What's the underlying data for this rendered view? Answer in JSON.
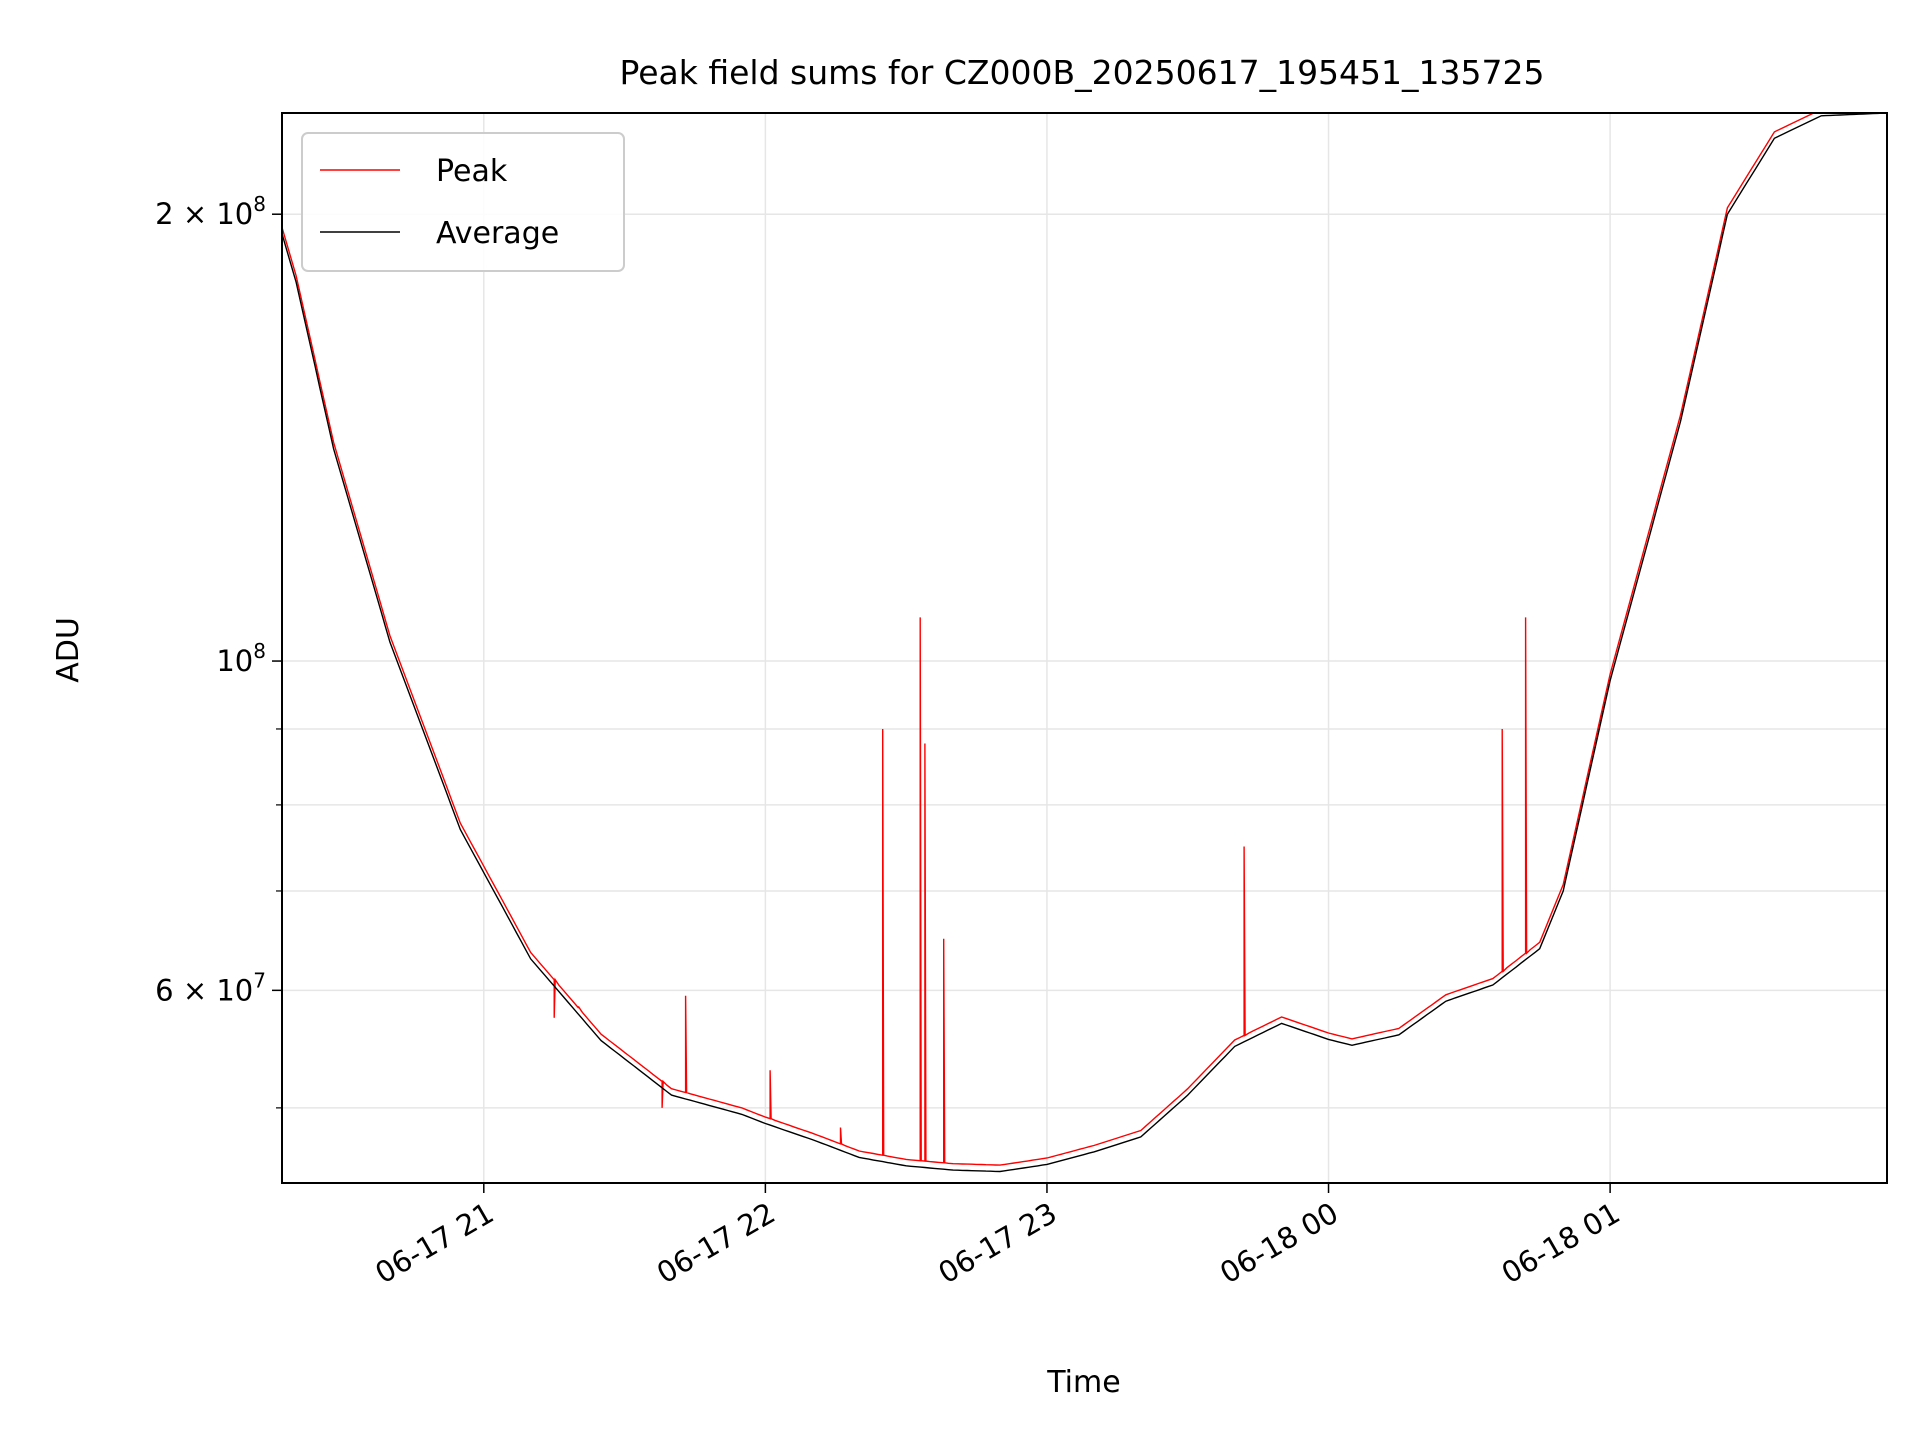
{
  "chart_data": {
    "type": "line",
    "title": "Peak field sums for CZ000B_20250617_195451_135725",
    "xlabel": "Time",
    "ylabel": "ADU",
    "yscale": "log",
    "grid": true,
    "legend_position": "top-left",
    "xlim": [
      "2025-06-17 20:17",
      "2025-06-18 01:59"
    ],
    "ylim": [
      44500000,
      234000000
    ],
    "x_ticks": [
      "06-17 21",
      "06-17 22",
      "06-17 23",
      "06-18 00",
      "06-18 01"
    ],
    "x_tick_values": [
      "2025-06-17 21:00",
      "2025-06-17 22:00",
      "2025-06-17 23:00",
      "2025-06-18 00:00",
      "2025-06-18 01:00"
    ],
    "y_ticks": [
      {
        "value": 200000000,
        "mantissa": "2",
        "sep": "×",
        "base": "10",
        "exp": "8"
      },
      {
        "value": 100000000,
        "mantissa": "",
        "sep": "",
        "base": "10",
        "exp": "8"
      },
      {
        "value": 60000000,
        "mantissa": "6",
        "sep": "×",
        "base": "10",
        "exp": "7"
      }
    ],
    "y_minor_ticks": [
      50000000,
      70000000,
      80000000,
      90000000
    ],
    "series": [
      {
        "name": "Average",
        "color": "#000000",
        "points": [
          [
            "2025-06-17 20:17",
            194000000
          ],
          [
            "2025-06-17 20:20",
            180000000
          ],
          [
            "2025-06-17 20:28",
            139000000
          ],
          [
            "2025-06-17 20:40",
            103000000
          ],
          [
            "2025-06-17 20:55",
            77000000
          ],
          [
            "2025-06-17 21:10",
            63000000
          ],
          [
            "2025-06-17 21:25",
            55500000
          ],
          [
            "2025-06-17 21:40",
            51000000
          ],
          [
            "2025-06-17 21:55",
            49500000
          ],
          [
            "2025-06-17 22:00",
            48800000
          ],
          [
            "2025-06-17 22:10",
            47600000
          ],
          [
            "2025-06-17 22:20",
            46300000
          ],
          [
            "2025-06-17 22:30",
            45700000
          ],
          [
            "2025-06-17 22:40",
            45400000
          ],
          [
            "2025-06-17 22:50",
            45300000
          ],
          [
            "2025-06-17 23:00",
            45800000
          ],
          [
            "2025-06-17 23:10",
            46700000
          ],
          [
            "2025-06-17 23:20",
            47800000
          ],
          [
            "2025-06-17 23:30",
            51000000
          ],
          [
            "2025-06-17 23:40",
            55000000
          ],
          [
            "2025-06-17 23:50",
            57000000
          ],
          [
            "2025-06-18 00:00",
            55600000
          ],
          [
            "2025-06-18 00:05",
            55100000
          ],
          [
            "2025-06-18 00:15",
            56000000
          ],
          [
            "2025-06-18 00:25",
            59000000
          ],
          [
            "2025-06-18 00:35",
            60500000
          ],
          [
            "2025-06-18 00:45",
            64000000
          ],
          [
            "2025-06-18 00:50",
            70000000
          ],
          [
            "2025-06-18 01:00",
            97000000
          ],
          [
            "2025-06-18 01:15",
            145000000
          ],
          [
            "2025-06-18 01:25",
            200000000
          ],
          [
            "2025-06-18 01:35",
            225000000
          ],
          [
            "2025-06-18 01:45",
            233000000
          ],
          [
            "2025-06-18 01:59",
            234000000
          ]
        ]
      },
      {
        "name": "Peak",
        "color": "#ff0000",
        "spikes": [
          [
            "2025-06-17 21:15",
            57500000
          ],
          [
            "2025-06-17 21:20",
            58500000
          ],
          [
            "2025-06-17 21:38",
            50000000
          ],
          [
            "2025-06-17 21:43",
            59500000
          ],
          [
            "2025-06-17 22:01",
            53000000
          ],
          [
            "2025-06-17 22:16",
            48500000
          ],
          [
            "2025-06-17 22:25",
            90000000
          ],
          [
            "2025-06-17 22:33",
            107000000
          ],
          [
            "2025-06-17 22:34",
            88000000
          ],
          [
            "2025-06-17 22:38",
            65000000
          ],
          [
            "2025-06-17 23:42",
            75000000
          ],
          [
            "2025-06-18 00:37",
            90000000
          ],
          [
            "2025-06-18 00:42",
            107000000
          ]
        ]
      }
    ],
    "legend": [
      {
        "name": "Peak",
        "color": "#ff0000"
      },
      {
        "name": "Average",
        "color": "#000000"
      }
    ]
  }
}
